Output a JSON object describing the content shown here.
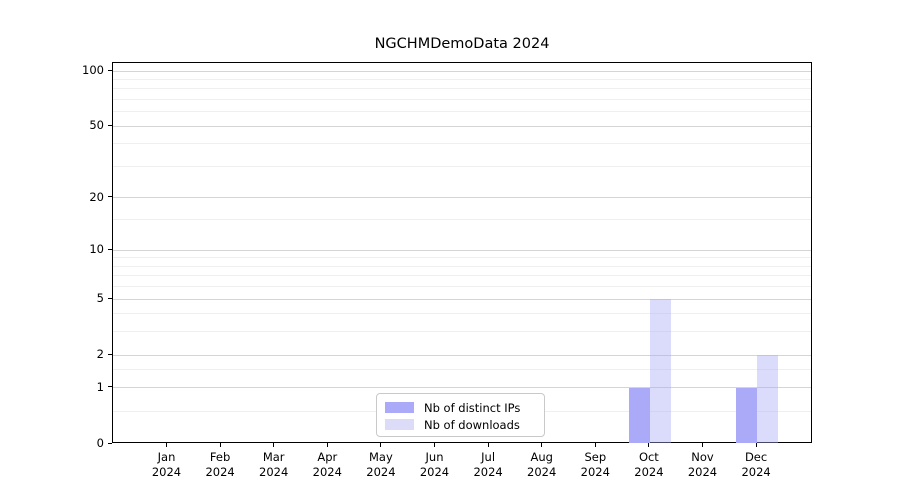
{
  "chart_data": {
    "type": "bar",
    "title": "NGCHMDemoData 2024",
    "categories": [
      "Jan 2024",
      "Feb 2024",
      "Mar 2024",
      "Apr 2024",
      "May 2024",
      "Jun 2024",
      "Jul 2024",
      "Aug 2024",
      "Sep 2024",
      "Oct 2024",
      "Nov 2024",
      "Dec 2024"
    ],
    "series": [
      {
        "name": "Nb of distinct IPs",
        "color": "#aaaaf8",
        "values": [
          0,
          0,
          0,
          0,
          0,
          0,
          0,
          0,
          0,
          1,
          0,
          1
        ]
      },
      {
        "name": "Nb of downloads",
        "color": "#dcdcf8",
        "color_rgba": "rgba(170,170,245,0.42)",
        "values": [
          0,
          0,
          0,
          0,
          0,
          0,
          0,
          0,
          0,
          5,
          0,
          2
        ]
      }
    ],
    "y_scale": "log10(1+v)",
    "y_major_ticks": [
      0,
      1,
      2,
      5,
      10,
      20,
      50,
      100
    ],
    "y_minor_gridlines": [
      0.5,
      1.5,
      3,
      4,
      6,
      7,
      8,
      9,
      15,
      30,
      40,
      60,
      70,
      80,
      90
    ],
    "ylim": [
      0,
      111
    ],
    "xlabel": "",
    "ylabel": "",
    "grid": "horizontal",
    "legend_position": "lower center",
    "legend_labels": [
      "Nb of distinct IPs",
      "Nb of downloads"
    ]
  }
}
